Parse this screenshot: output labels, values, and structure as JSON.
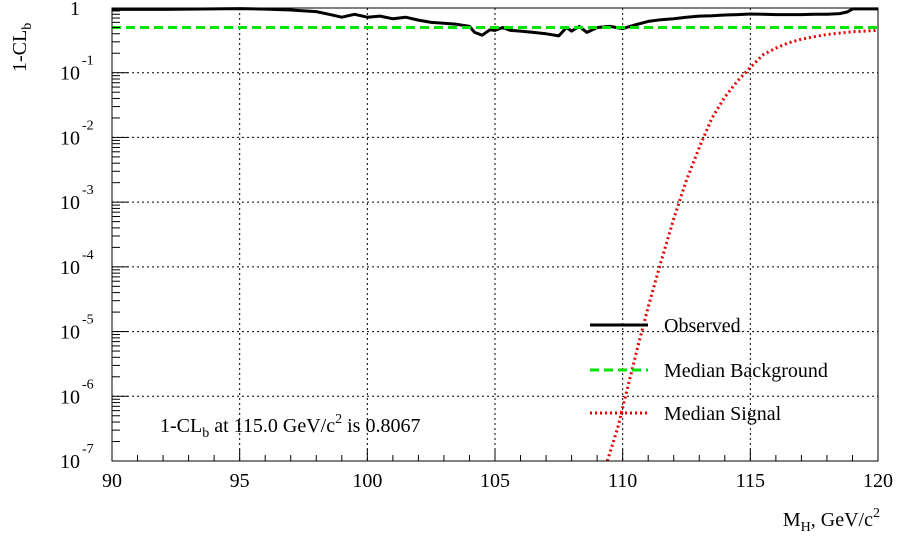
{
  "chart_data": {
    "type": "line",
    "x_axis": {
      "label_main": "M",
      "label_sub": "H",
      "label_rest": ", GeV/c",
      "label_sup": "2",
      "range": [
        90,
        120
      ],
      "ticks": [
        90,
        95,
        100,
        105,
        110,
        115,
        120
      ]
    },
    "y_axis": {
      "label_main": "1-CL",
      "label_sub": "b",
      "scale": "log",
      "range": [
        1e-07,
        1
      ],
      "ticks": [
        {
          "value": 1,
          "base": "1",
          "exp": ""
        },
        {
          "value": 0.1,
          "base": "10",
          "exp": "-1"
        },
        {
          "value": 0.01,
          "base": "10",
          "exp": "-2"
        },
        {
          "value": 0.001,
          "base": "10",
          "exp": "-3"
        },
        {
          "value": 0.0001,
          "base": "10",
          "exp": "-4"
        },
        {
          "value": 1e-05,
          "base": "10",
          "exp": "-5"
        },
        {
          "value": 1e-06,
          "base": "10",
          "exp": "-6"
        },
        {
          "value": 1e-07,
          "base": "10",
          "exp": "-7"
        }
      ]
    },
    "grid": true,
    "legend_position": "bottom-right",
    "annotation": {
      "prefix": "1-CL",
      "sub": "b",
      "middle": " at 115.0 GeV/c",
      "sup": "2",
      "suffix": " is 0.8067"
    },
    "series": [
      {
        "name": "Observed",
        "color": "#000000",
        "style": "solid",
        "points": [
          [
            90,
            0.95
          ],
          [
            91,
            0.95
          ],
          [
            92,
            0.95
          ],
          [
            93,
            0.96
          ],
          [
            94,
            0.97
          ],
          [
            95,
            0.98
          ],
          [
            96,
            0.96
          ],
          [
            97,
            0.93
          ],
          [
            98,
            0.88
          ],
          [
            98.5,
            0.8
          ],
          [
            99,
            0.72
          ],
          [
            99.5,
            0.8
          ],
          [
            100,
            0.72
          ],
          [
            100.5,
            0.75
          ],
          [
            101,
            0.68
          ],
          [
            101.5,
            0.72
          ],
          [
            102,
            0.65
          ],
          [
            102.5,
            0.6
          ],
          [
            103,
            0.58
          ],
          [
            103.5,
            0.56
          ],
          [
            104,
            0.52
          ],
          [
            104.2,
            0.42
          ],
          [
            104.5,
            0.38
          ],
          [
            104.8,
            0.46
          ],
          [
            105,
            0.45
          ],
          [
            105.3,
            0.5
          ],
          [
            105.6,
            0.45
          ],
          [
            106,
            0.44
          ],
          [
            106.5,
            0.42
          ],
          [
            107,
            0.4
          ],
          [
            107.5,
            0.37
          ],
          [
            107.8,
            0.5
          ],
          [
            108,
            0.44
          ],
          [
            108.3,
            0.52
          ],
          [
            108.6,
            0.42
          ],
          [
            109,
            0.5
          ],
          [
            109.5,
            0.52
          ],
          [
            110,
            0.48
          ],
          [
            110.5,
            0.55
          ],
          [
            111,
            0.62
          ],
          [
            111.5,
            0.66
          ],
          [
            112,
            0.68
          ],
          [
            112.5,
            0.72
          ],
          [
            113,
            0.75
          ],
          [
            113.5,
            0.76
          ],
          [
            114,
            0.78
          ],
          [
            114.5,
            0.79
          ],
          [
            115,
            0.8067
          ],
          [
            115.5,
            0.8
          ],
          [
            116,
            0.79
          ],
          [
            116.5,
            0.79
          ],
          [
            117,
            0.79
          ],
          [
            117.5,
            0.8
          ],
          [
            118,
            0.8
          ],
          [
            118.5,
            0.82
          ],
          [
            118.8,
            0.87
          ],
          [
            119,
            0.97
          ],
          [
            119.5,
            0.97
          ],
          [
            120,
            0.97
          ]
        ]
      },
      {
        "name": "Median Background",
        "color": "#00e600",
        "style": "dashed",
        "points": [
          [
            90,
            0.5
          ],
          [
            120,
            0.5
          ]
        ]
      },
      {
        "name": "Median Signal",
        "color": "#e60000",
        "style": "dotted",
        "points": [
          [
            109.4,
            1e-07
          ],
          [
            109.8,
            3.2e-07
          ],
          [
            110.2,
            1.4e-06
          ],
          [
            110.6,
            6e-06
          ],
          [
            111,
            2.4e-05
          ],
          [
            111.5,
            0.00012
          ],
          [
            112,
            0.00055
          ],
          [
            112.5,
            0.0022
          ],
          [
            113,
            0.007
          ],
          [
            113.5,
            0.02
          ],
          [
            114,
            0.042
          ],
          [
            114.5,
            0.075
          ],
          [
            115,
            0.12
          ],
          [
            115.5,
            0.19
          ],
          [
            116,
            0.24
          ],
          [
            116.5,
            0.29
          ],
          [
            117,
            0.33
          ],
          [
            117.5,
            0.36
          ],
          [
            118,
            0.39
          ],
          [
            118.5,
            0.41
          ],
          [
            119,
            0.43
          ],
          [
            119.5,
            0.44
          ],
          [
            120,
            0.45
          ]
        ]
      }
    ]
  }
}
